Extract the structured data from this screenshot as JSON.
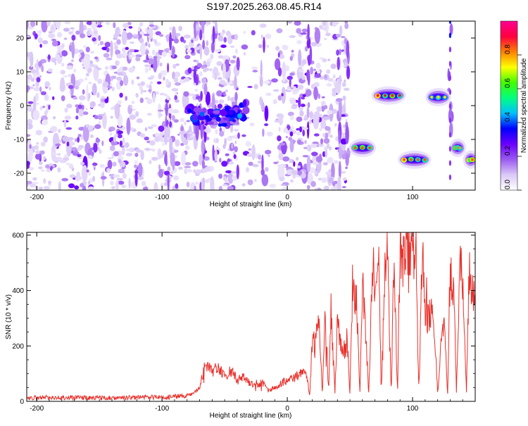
{
  "title": "S197.2025.263.08.45.R14",
  "chart_data": [
    {
      "type": "heatmap",
      "title": "S197.2025.263.08.45.R14",
      "xlabel": "Height of straight line (km)",
      "ylabel": "Frequency (Hz)",
      "xlim": [
        -208,
        150
      ],
      "ylim": [
        -25,
        25
      ],
      "xticks": [
        -200,
        -100,
        0,
        100
      ],
      "yticks": [
        -20,
        -10,
        0,
        10,
        20
      ],
      "colorbar": {
        "label": "Normalized spectral amplitude",
        "range": [
          0.0,
          1.0
        ],
        "ticks": [
          "0.0",
          "0.2",
          "0.4",
          "0.6",
          "0.8"
        ],
        "colors": [
          "#ffffff",
          "#d9c8f7",
          "#9b59f0",
          "#6a00ff",
          "#0000ff",
          "#00c0ff",
          "#00ff80",
          "#40ff00",
          "#ffff00",
          "#ff8000",
          "#ff0040",
          "#ff0090"
        ]
      },
      "features": [
        {
          "name": "diffuse background",
          "x_range": [
            -208,
            48
          ],
          "freq_range": [
            -25,
            25
          ],
          "amplitude": 0.15
        },
        {
          "name": "slanted streak",
          "x_range": [
            -80,
            -33
          ],
          "freq_range": [
            -5,
            -1
          ],
          "amplitude": 0.35
        },
        {
          "name": "blob",
          "x_range": [
            52,
            68
          ],
          "freq": -12.5,
          "amplitude": 0.85
        },
        {
          "name": "blob",
          "x_range": [
            70,
            92
          ],
          "freq": 3.0,
          "amplitude": 0.9
        },
        {
          "name": "blob",
          "x_range": [
            91,
            112
          ],
          "freq": -16.0,
          "amplitude": 0.85
        },
        {
          "name": "blob",
          "x_range": [
            113,
            128
          ],
          "freq": 2.5,
          "amplitude": 0.75
        },
        {
          "name": "blob",
          "x_range": [
            132,
            140
          ],
          "freq": -12.5,
          "amplitude": 0.8
        },
        {
          "name": "blob",
          "x_range": [
            143,
            150
          ],
          "freq": -16.0,
          "amplitude": 0.85
        }
      ]
    },
    {
      "type": "line",
      "xlabel": "Height of straight line (km)",
      "ylabel": "SNR (10 * v/v)",
      "xlim": [
        -208,
        150
      ],
      "ylim": [
        0,
        610
      ],
      "xticks": [
        -200,
        -100,
        0,
        100
      ],
      "yticks": [
        0,
        200,
        400,
        600
      ],
      "series": [
        {
          "name": "SNR",
          "color": "#e8302a",
          "x": [
            -208,
            -190,
            -170,
            -150,
            -130,
            -110,
            -95,
            -85,
            -80,
            -75,
            -70,
            -65,
            -60,
            -55,
            -50,
            -45,
            -40,
            -35,
            -30,
            -25,
            -20,
            -15,
            -10,
            -5,
            0,
            5,
            10,
            15,
            18,
            20,
            22,
            25,
            28,
            30,
            33,
            35,
            38,
            40,
            43,
            45,
            48,
            50,
            52,
            55,
            58,
            60,
            62,
            65,
            68,
            70,
            73,
            75,
            78,
            80,
            83,
            85,
            88,
            90,
            93,
            95,
            98,
            100,
            103,
            105,
            108,
            110,
            112,
            115,
            118,
            120,
            122,
            125,
            128,
            130,
            133,
            135,
            138,
            140,
            143,
            145,
            148,
            150
          ],
          "y": [
            12,
            14,
            13,
            12,
            13,
            15,
            15,
            20,
            20,
            30,
            50,
            150,
            110,
            130,
            90,
            120,
            80,
            90,
            70,
            60,
            70,
            40,
            50,
            70,
            80,
            90,
            100,
            120,
            20,
            280,
            190,
            320,
            30,
            350,
            40,
            340,
            30,
            300,
            210,
            200,
            220,
            30,
            440,
            400,
            30,
            430,
            320,
            30,
            500,
            470,
            520,
            30,
            520,
            540,
            30,
            560,
            30,
            580,
            520,
            600,
            560,
            580,
            530,
            30,
            590,
            340,
            310,
            350,
            220,
            30,
            180,
            300,
            30,
            500,
            420,
            30,
            500,
            460,
            30,
            480,
            420,
            440
          ]
        }
      ]
    }
  ]
}
